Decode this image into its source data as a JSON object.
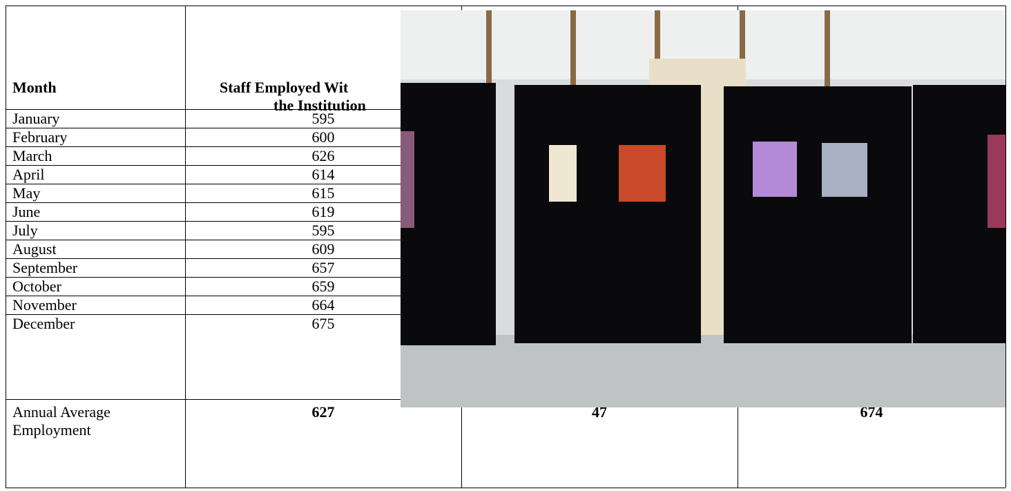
{
  "header": {
    "month": "Month",
    "staff_line1": "Staff Employed Wit",
    "staff_line2": "the Institution"
  },
  "table": {
    "rows": [
      [
        "January",
        595
      ],
      [
        "February",
        600
      ],
      [
        "March",
        626
      ],
      [
        "April",
        614
      ],
      [
        "May",
        615
      ],
      [
        "June",
        619
      ],
      [
        "July",
        595
      ],
      [
        "August",
        609
      ],
      [
        "September",
        657
      ],
      [
        "October",
        659
      ],
      [
        "November",
        664
      ],
      [
        "December",
        675
      ]
    ],
    "total": {
      "label_line1": "Annual Average",
      "label_line2": "Employment",
      "values": [
        627,
        47,
        674
      ]
    }
  }
}
